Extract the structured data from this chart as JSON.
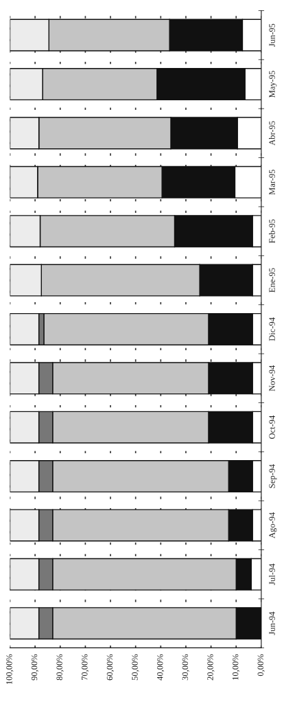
{
  "chart_data": {
    "type": "bar",
    "orientation": "horizontal",
    "stacked": true,
    "categories": [
      "Jun-95",
      "May-95",
      "Abr-95",
      "Mar-95",
      "Feb-95",
      "Ene-95",
      "Dic-94",
      "Nov-94",
      "Oct-94",
      "Sep-94",
      "Ago-94",
      "Jul-94",
      "Jun-94"
    ],
    "series": [
      {
        "color": "#ffffff",
        "values": [
          7.5,
          6.5,
          9.5,
          10.5,
          3.5,
          3.5,
          3.5,
          3.5,
          3.5,
          3.5,
          3.5,
          4,
          0
        ]
      },
      {
        "color": "#111111",
        "values": [
          29,
          35,
          26.5,
          29,
          31,
          21,
          17.5,
          17.5,
          17.5,
          9.5,
          9.5,
          6,
          10
        ]
      },
      {
        "color": "#c4c4c4",
        "values": [
          48,
          45.5,
          52.5,
          49.5,
          53.5,
          63,
          65.5,
          62,
          62,
          70,
          70,
          73,
          73
        ]
      },
      {
        "color": "#777777",
        "values": [
          0,
          0,
          0,
          0,
          0,
          0,
          2,
          5.5,
          5.5,
          5.5,
          5.5,
          5.5,
          5.5
        ]
      },
      {
        "color": "#ececec",
        "values": [
          15.5,
          13,
          11.5,
          11,
          12,
          12.5,
          11.5,
          11.5,
          11.5,
          11.5,
          11.5,
          11.5,
          11.5
        ]
      }
    ],
    "xlim": [
      100,
      0
    ],
    "xticks": [
      {
        "value": 100,
        "label": "100,00%"
      },
      {
        "value": 90,
        "label": "90,00%"
      },
      {
        "value": 80,
        "label": "80,00%"
      },
      {
        "value": 70,
        "label": "70,00%"
      },
      {
        "value": 60,
        "label": "60,00%"
      },
      {
        "value": 50,
        "label": "50,00%"
      },
      {
        "value": 40,
        "label": "40,00%"
      },
      {
        "value": 30,
        "label": "30,00%"
      },
      {
        "value": 20,
        "label": "20,00%"
      },
      {
        "value": 10,
        "label": "10,00%"
      },
      {
        "value": 0,
        "label": "0,00%"
      }
    ],
    "grid": "x",
    "legend": false
  }
}
